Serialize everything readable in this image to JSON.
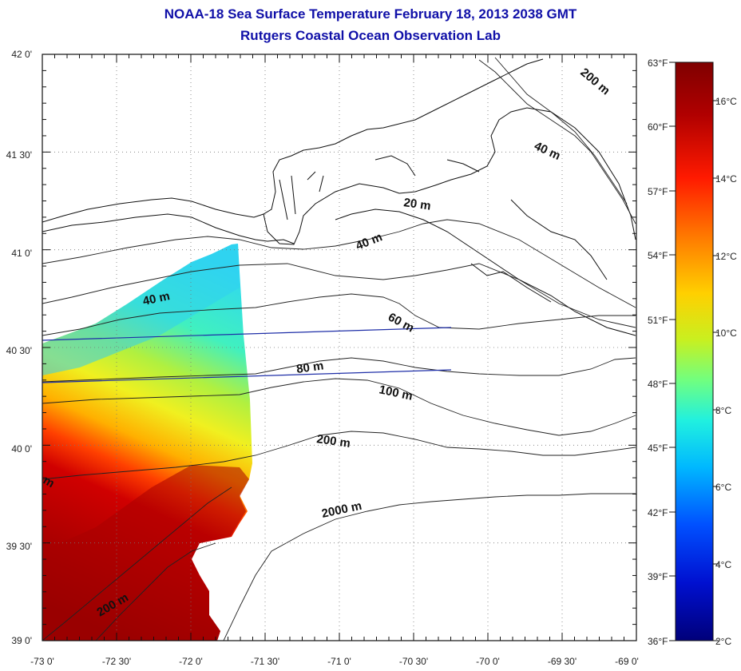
{
  "title": "NOAA-18 Sea Surface Temperature February 18, 2013 2038 GMT",
  "subtitle": "Rutgers Coastal Ocean Observation Lab",
  "lon_ticks": [
    "-73 0'",
    "-72 30'",
    "-72 0'",
    "-71 30'",
    "-71 0'",
    "-70 30'",
    "-70 0'",
    "-69 30'",
    "-69 0'"
  ],
  "lat_ticks": [
    "42 0'",
    "41 30'",
    "41 0'",
    "40 30'",
    "40 0'",
    "39 30'",
    "39 0'"
  ],
  "isobaths": [
    {
      "label": "20 m"
    },
    {
      "label": "40 m"
    },
    {
      "label": "40 m"
    },
    {
      "label": "40 m"
    },
    {
      "label": "60 m"
    },
    {
      "label": "80 m"
    },
    {
      "label": "100 m"
    },
    {
      "label": "200 m"
    },
    {
      "label": "200 m"
    },
    {
      "label": "200 m"
    },
    {
      "label": "2000 m"
    },
    {
      "label": "m"
    }
  ],
  "colorbar": {
    "fahrenheit_labels": [
      "63°F",
      "60°F",
      "57°F",
      "54°F",
      "51°F",
      "48°F",
      "45°F",
      "42°F",
      "39°F",
      "36°F"
    ],
    "celsius_labels": [
      "16°C",
      "14°C",
      "12°C",
      "10°C",
      "8°C",
      "6°C",
      "4°C",
      "2°C"
    ],
    "colors": [
      "#7f0000",
      "#c00000",
      "#ff2a00",
      "#ff8000",
      "#ffd000",
      "#c8f020",
      "#70ff80",
      "#20e8e0",
      "#00b8ff",
      "#0060ff",
      "#0010d0",
      "#00007a"
    ]
  },
  "map_extent": {
    "lon_min": -73.0,
    "lon_max": -69.0,
    "lat_min": 39.0,
    "lat_max": 42.0
  }
}
